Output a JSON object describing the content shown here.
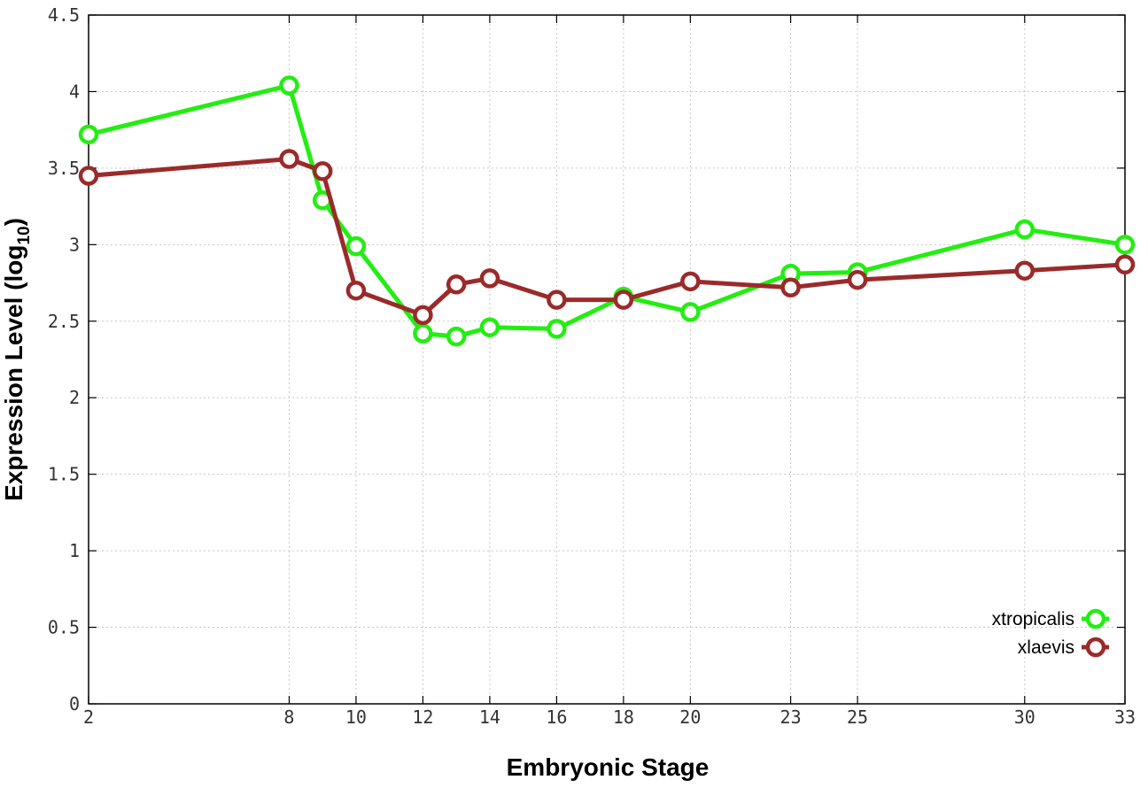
{
  "chart_data": {
    "type": "line",
    "xlabel": "Embryonic Stage",
    "ylabel_main": "Expression Level (log",
    "ylabel_sub": "10",
    "ylabel_close": ")",
    "x": [
      2,
      8,
      9,
      10,
      12,
      13,
      14,
      16,
      18,
      20,
      23,
      25,
      30,
      33
    ],
    "x_tick_labels": [
      "2",
      "8",
      "10",
      "12",
      "14",
      "16",
      "18",
      "20",
      "23",
      "25",
      "30",
      "33"
    ],
    "x_tick_values": [
      2,
      8,
      10,
      12,
      14,
      16,
      18,
      20,
      23,
      25,
      30,
      33
    ],
    "xlim": [
      2,
      33
    ],
    "ylim": [
      0,
      4.5
    ],
    "y_tick_values": [
      0,
      0.5,
      1,
      1.5,
      2,
      2.5,
      3,
      3.5,
      4,
      4.5
    ],
    "y_tick_labels": [
      "0",
      "0.5",
      "1",
      "1.5",
      "2",
      "2.5",
      "3",
      "3.5",
      "4",
      "4.5"
    ],
    "grid": true,
    "legend_position": "bottom-right",
    "series": [
      {
        "name": "xtropicalis",
        "color": "#22ee11",
        "values": [
          3.72,
          4.04,
          3.29,
          2.99,
          2.42,
          2.4,
          2.46,
          2.45,
          2.66,
          2.56,
          2.81,
          2.82,
          3.1,
          3.0
        ]
      },
      {
        "name": "xlaevis",
        "color": "#9b2a2a",
        "values": [
          3.45,
          3.56,
          3.48,
          2.7,
          2.54,
          2.74,
          2.78,
          2.64,
          2.64,
          2.76,
          2.72,
          2.77,
          2.83,
          2.87
        ]
      }
    ]
  }
}
